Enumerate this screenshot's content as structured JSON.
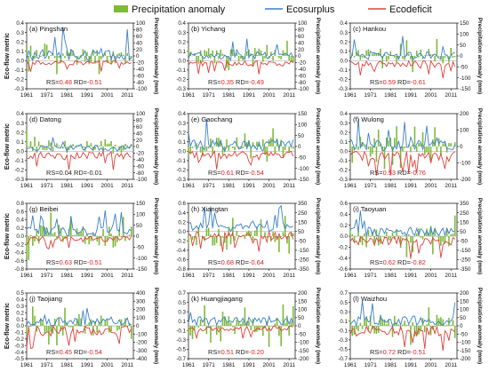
{
  "legend": {
    "items": [
      {
        "label": "Precipitation anomaly",
        "kind": "bar",
        "color": "#7cba3a"
      },
      {
        "label": "Ecosurplus",
        "kind": "line",
        "color": "#3a7fc8"
      },
      {
        "label": "Ecodeficit",
        "kind": "line",
        "color": "#e04038"
      }
    ]
  },
  "colors": {
    "surplus": "#3a7fc8",
    "deficit": "#e04038",
    "precip": "#7cba3a",
    "stat_black": "#222222",
    "stat_red": "#e02020"
  },
  "chart_data": [
    {
      "type": "bar+line",
      "panel": "(a) Pingshan",
      "ylabel": "Eco-flow metric",
      "y2label": "Precipitation anomaly (mm)",
      "xticks": [
        "1961",
        "1971",
        "1981",
        "1991",
        "2001",
        "2011"
      ],
      "xlim": [
        1961,
        2014
      ],
      "ylim": [
        -0.3,
        0.4
      ],
      "yticks": [
        "0.4",
        "0.3",
        "0.2",
        "0.1",
        "0.0",
        "-0.1",
        "-0.2",
        "-0.3"
      ],
      "y2lim": [
        -100,
        100
      ],
      "y2ticks": [
        "100",
        "80",
        "60",
        "40",
        "20",
        "0",
        "-20",
        "-40",
        "-60",
        "-80",
        "-100"
      ],
      "rs_label": "RS=",
      "rs_value": "0.48",
      "rd_label": "RD=",
      "rd_value": "-0.51",
      "rs_color": "red",
      "rd_color": "red",
      "seed": 11,
      "surplus_max": 0.37,
      "deficit_min": -0.12,
      "precip_amp": 60
    },
    {
      "type": "bar+line",
      "panel": "(b) Yichang",
      "ylabel": "",
      "y2label": "Precipitation anomaly (mm)",
      "xticks": [
        "1961",
        "1971",
        "1981",
        "1991",
        "2001",
        "2011"
      ],
      "xlim": [
        1961,
        2014
      ],
      "ylim": [
        -0.3,
        0.4
      ],
      "yticks": [
        "0.4",
        "0.3",
        "0.2",
        "0.1",
        "0.0",
        "-0.1",
        "-0.2",
        "-0.3"
      ],
      "y2lim": [
        -100,
        100
      ],
      "y2ticks": [
        "100",
        "80",
        "60",
        "40",
        "20",
        "0",
        "-20",
        "-40",
        "-60",
        "-80",
        "-100"
      ],
      "rs_label": "RS=",
      "rs_value": "0.35",
      "rd_label": "RD=",
      "rd_value": "-0.49",
      "rs_color": "red",
      "rd_color": "red",
      "seed": 23,
      "surplus_max": 0.3,
      "deficit_min": -0.15,
      "precip_amp": 55
    },
    {
      "type": "bar+line",
      "panel": "(c) Hankou",
      "ylabel": "",
      "y2label": "Precipitation anomaly (mm)",
      "xticks": [
        "1961",
        "1971",
        "1981",
        "1991",
        "2001",
        "2011"
      ],
      "xlim": [
        1961,
        2014
      ],
      "ylim": [
        -0.3,
        0.4
      ],
      "yticks": [
        "0.4",
        "0.3",
        "0.2",
        "0.1",
        "0.0",
        "-0.1",
        "-0.2",
        "-0.3"
      ],
      "y2lim": [
        -150,
        150
      ],
      "y2ticks": [
        "150",
        "100",
        "50",
        "0",
        "-50",
        "-100",
        "-150"
      ],
      "rs_label": "RS=",
      "rs_value": "0.59",
      "rd_label": "RD=",
      "rd_value": "-0.61",
      "rs_color": "red",
      "rd_color": "red",
      "seed": 37,
      "surplus_max": 0.28,
      "deficit_min": -0.2,
      "precip_amp": 80
    },
    {
      "type": "bar+line",
      "panel": "(d) Datong",
      "ylabel": "Eco-flow metric",
      "y2label": "Precipitation anomaly (mm)",
      "xticks": [
        "1961",
        "1971",
        "1981",
        "1991",
        "2001",
        "2011"
      ],
      "xlim": [
        1961,
        2014
      ],
      "ylim": [
        -0.3,
        0.4
      ],
      "yticks": [
        "0.4",
        "0.3",
        "0.2",
        "0.1",
        "0.0",
        "-0.1",
        "-0.2",
        "-0.3"
      ],
      "y2lim": [
        -100,
        100
      ],
      "y2ticks": [
        "100",
        "80",
        "60",
        "40",
        "20",
        "0",
        "-20",
        "-40",
        "-60",
        "-80",
        "-100"
      ],
      "rs_label": "RS=",
      "rs_value": "0.04",
      "rd_label": "RD=",
      "rd_value": "-0.01",
      "rs_color": "black",
      "rd_color": "black",
      "seed": 41,
      "surplus_max": 0.22,
      "deficit_min": -0.22,
      "precip_amp": 50
    },
    {
      "type": "bar+line",
      "panel": "(e) Gaochang",
      "ylabel": "",
      "y2label": "Precipitation anomaly (mm)",
      "xticks": [
        "1961",
        "1971",
        "1981",
        "1991",
        "2001",
        "2011"
      ],
      "xlim": [
        1961,
        2014
      ],
      "ylim": [
        -0.3,
        0.4
      ],
      "yticks": [
        "0.4",
        "0.3",
        "0.2",
        "0.1",
        "0.0",
        "-0.1",
        "-0.2",
        "-0.3"
      ],
      "y2lim": [
        -150,
        150
      ],
      "y2ticks": [
        "150",
        "100",
        "50",
        "0",
        "-50",
        "-100",
        "-150"
      ],
      "rs_label": "RS=",
      "rs_value": "0.61",
      "rd_label": "RD=",
      "rd_value": "-0.54",
      "rs_color": "red",
      "rd_color": "red",
      "seed": 53,
      "surplus_max": 0.36,
      "deficit_min": -0.2,
      "precip_amp": 90
    },
    {
      "type": "bar+line",
      "panel": "(f) Wulong",
      "ylabel": "",
      "y2label": "Precipitation anomaly (mm)",
      "xticks": [
        "1961",
        "1971",
        "1981",
        "1991",
        "2001",
        "2011"
      ],
      "xlim": [
        1961,
        2014
      ],
      "ylim": [
        -0.3,
        0.4
      ],
      "yticks": [
        "0.4",
        "0.3",
        "0.2",
        "0.1",
        "0.0",
        "-0.1",
        "-0.2",
        "-0.3"
      ],
      "y2lim": [
        -200,
        200
      ],
      "y2ticks": [
        "200",
        "100",
        "0",
        "-100",
        "-200"
      ],
      "rs_label": "RS=",
      "rs_value": "0.53",
      "rd_label": "RD=",
      "rd_value": "-0.76",
      "rs_color": "red",
      "rd_color": "red",
      "seed": 67,
      "surplus_max": 0.35,
      "deficit_min": -0.28,
      "precip_amp": 140
    },
    {
      "type": "bar+line",
      "panel": "(g) Beibei",
      "ylabel": "Eco-flow metric",
      "y2label": "Precipitation anomaly (mm)",
      "xticks": [
        "1961",
        "1971",
        "1981",
        "1991",
        "2001",
        "2011"
      ],
      "xlim": [
        1961,
        2014
      ],
      "ylim": [
        -0.8,
        0.8
      ],
      "yticks": [
        "0.8",
        "0.6",
        "0.4",
        "0.2",
        "0.0",
        "-0.2",
        "-0.4",
        "-0.6",
        "-0.8"
      ],
      "y2lim": [
        -150,
        150
      ],
      "y2ticks": [
        "150",
        "100",
        "50",
        "0",
        "-50",
        "-100",
        "-150"
      ],
      "rs_label": "RS=",
      "rs_value": "0.63",
      "rd_label": "RD=",
      "rd_value": "-0.51",
      "rs_color": "red",
      "rd_color": "red",
      "seed": 71,
      "surplus_max": 0.65,
      "deficit_min": -0.35,
      "precip_amp": 110
    },
    {
      "type": "bar+line",
      "panel": "(h) Xiangtan",
      "ylabel": "",
      "y2label": "Precipitation anomaly (mm)",
      "xticks": [
        "1961",
        "1971",
        "1981",
        "1991",
        "2001",
        "2011"
      ],
      "xlim": [
        1961,
        2014
      ],
      "ylim": [
        -0.8,
        0.6
      ],
      "yticks": [
        "0.6",
        "0.4",
        "0.2",
        "0.0",
        "-0.2",
        "-0.4",
        "-0.6",
        "-0.8"
      ],
      "y2lim": [
        -350,
        350
      ],
      "y2ticks": [
        "350",
        "250",
        "150",
        "50",
        "-50",
        "-150",
        "-250",
        "-350"
      ],
      "rs_label": "RS=",
      "rs_value": "0.68",
      "rd_label": "RD=",
      "rd_value": "-0.64",
      "rs_color": "red",
      "rd_color": "red",
      "seed": 83,
      "surplus_max": 0.55,
      "deficit_min": -0.45,
      "precip_amp": 230
    },
    {
      "type": "bar+line",
      "panel": "(i) Taoyuan",
      "ylabel": "",
      "y2label": "Precipitation anomaly (mm)",
      "xticks": [
        "1961",
        "1971",
        "1981",
        "1991",
        "2001",
        "2011"
      ],
      "xlim": [
        1961,
        2014
      ],
      "ylim": [
        -0.6,
        0.6
      ],
      "yticks": [
        "0.6",
        "0.4",
        "0.2",
        "0.0",
        "-0.2",
        "-0.4",
        "-0.6"
      ],
      "y2lim": [
        -350,
        350
      ],
      "y2ticks": [
        "350",
        "250",
        "150",
        "50",
        "-50",
        "-150",
        "-250",
        "-350"
      ],
      "rs_label": "RS=",
      "rs_value": "0.62",
      "rd_label": "RD=",
      "rd_value": "-0.82",
      "rs_color": "red",
      "rd_color": "red",
      "seed": 97,
      "surplus_max": 0.48,
      "deficit_min": -0.42,
      "precip_amp": 230
    },
    {
      "type": "bar+line",
      "panel": "(j) Taojiang",
      "ylabel": "Eco-flow metric",
      "y2label": "Precipitation anomaly (mm)",
      "xticks": [
        "1961",
        "1971",
        "1981",
        "1991",
        "2001",
        "2011"
      ],
      "xlim": [
        1961,
        2014
      ],
      "ylim": [
        -0.5,
        0.5
      ],
      "yticks": [
        "0.5",
        "0.4",
        "0.3",
        "0.2",
        "0.1",
        "0.0",
        "-0.1",
        "-0.2",
        "-0.3",
        "-0.4",
        "-0.5"
      ],
      "y2lim": [
        -400,
        400
      ],
      "y2ticks": [
        "400",
        "300",
        "200",
        "100",
        "0",
        "-100",
        "-200",
        "-300",
        "-400"
      ],
      "rs_label": "RS=",
      "rs_value": "0.45",
      "rd_label": "RD=",
      "rd_value": "-0.54",
      "rs_color": "red",
      "rd_color": "red",
      "seed": 101,
      "surplus_max": 0.38,
      "deficit_min": -0.4,
      "precip_amp": 280
    },
    {
      "type": "bar+line",
      "panel": "(k) Huangjiagang",
      "ylabel": "",
      "y2label": "Precipitation anomaly (mm)",
      "xticks": [
        "1961",
        "1971",
        "1981",
        "1991",
        "2001",
        "2011"
      ],
      "xlim": [
        1961,
        2014
      ],
      "ylim": [
        -0.7,
        0.7
      ],
      "yticks": [
        "0.7",
        "0.5",
        "0.3",
        "0.1",
        "-0.1",
        "-0.3",
        "-0.5",
        "-0.7"
      ],
      "y2lim": [
        -200,
        200
      ],
      "y2ticks": [
        "200",
        "150",
        "100",
        "50",
        "0",
        "-50",
        "-100",
        "-150",
        "-200"
      ],
      "rs_label": "RS=",
      "rs_value": "0.51",
      "rd_label": "RD=",
      "rd_value": "-0.20",
      "rs_color": "red",
      "rd_color": "red",
      "seed": 113,
      "surplus_max": 0.55,
      "deficit_min": -0.3,
      "precip_amp": 140
    },
    {
      "type": "bar+line",
      "panel": "(l) Waizhou",
      "ylabel": "",
      "y2label": "Precipitation anomaly (mm)",
      "xticks": [
        "1961",
        "1971",
        "1981",
        "1991",
        "2001",
        "2011"
      ],
      "xlim": [
        1961,
        2014
      ],
      "ylim": [
        -0.7,
        0.7
      ],
      "yticks": [
        "0.7",
        "0.5",
        "0.3",
        "0.1",
        "-0.1",
        "-0.3",
        "-0.5",
        "-0.7"
      ],
      "y2lim": [
        -200,
        200
      ],
      "y2ticks": [
        "200",
        "150",
        "100",
        "50",
        "0",
        "-50",
        "-100",
        "-150",
        "-200"
      ],
      "rs_label": "RS=",
      "rs_value": "0.72",
      "rd_label": "RD=",
      "rd_value": "-0.51",
      "rs_color": "red",
      "rd_color": "red",
      "seed": 127,
      "surplus_max": 0.6,
      "deficit_min": -0.55,
      "precip_amp": 150
    }
  ]
}
